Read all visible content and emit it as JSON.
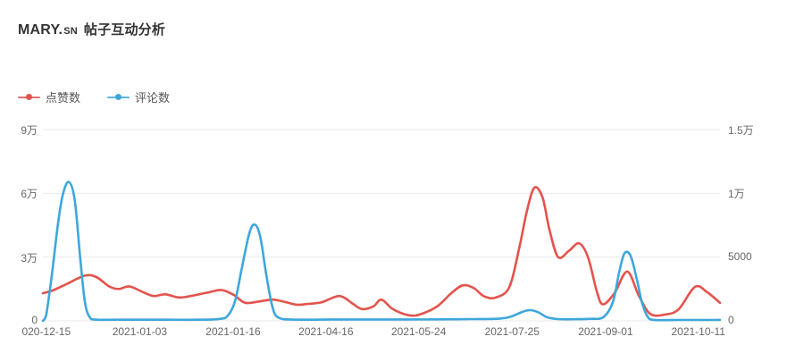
{
  "header": {
    "title_brand": "MARY.",
    "title_brand_suffix": "SN",
    "title_text": "帖子互动分析"
  },
  "legend": {
    "items": [
      {
        "series": "likes",
        "label": "点赞数",
        "color": "#e4534d"
      },
      {
        "series": "comments",
        "label": "评论数",
        "color": "#3da7dc"
      }
    ]
  },
  "colors": {
    "likes_line": "#e4534d",
    "comments_line": "#3da7dc",
    "gridline": "#e9e9e9",
    "axis_text": "#666666",
    "title_text": "#333333"
  },
  "chart_data": {
    "type": "line",
    "title": "MARY.SN 帖子互动分析",
    "smooth": true,
    "grid": true,
    "legend_position": "top-left",
    "x_axis": {
      "labels": [
        "020-12-15",
        "2021-01-03",
        "2021-01-16",
        "2021-04-16",
        "2021-05-24",
        "2021-07-25",
        "2021-09-01",
        "2021-10-11"
      ],
      "label_positions": [
        0.005,
        0.143,
        0.281,
        0.418,
        0.555,
        0.693,
        0.831,
        0.968
      ]
    },
    "y_axis_left": {
      "name": "点赞数",
      "max": 90000,
      "ticks": [
        {
          "label": "0",
          "value": 0
        },
        {
          "label": "3万",
          "value": 30000
        },
        {
          "label": "6万",
          "value": 60000
        },
        {
          "label": "9万",
          "value": 90000
        }
      ]
    },
    "y_axis_right": {
      "name": "评论数",
      "max": 15000,
      "ticks": [
        {
          "label": "0",
          "value": 0
        },
        {
          "label": "5000",
          "value": 5000
        },
        {
          "label": "1万",
          "value": 10000
        },
        {
          "label": "1.5万",
          "value": 15000
        }
      ]
    },
    "series": [
      {
        "name": "点赞数",
        "id": "likes",
        "axis": "left",
        "color": "#e4534d",
        "points": [
          [
            0.0,
            13000
          ],
          [
            0.016,
            14500
          ],
          [
            0.036,
            17500
          ],
          [
            0.062,
            21300
          ],
          [
            0.079,
            20600
          ],
          [
            0.098,
            16200
          ],
          [
            0.112,
            15000
          ],
          [
            0.128,
            16200
          ],
          [
            0.148,
            13500
          ],
          [
            0.164,
            11700
          ],
          [
            0.181,
            12500
          ],
          [
            0.201,
            11000
          ],
          [
            0.22,
            11800
          ],
          [
            0.243,
            13300
          ],
          [
            0.264,
            14500
          ],
          [
            0.282,
            12200
          ],
          [
            0.299,
            8500
          ],
          [
            0.322,
            9300
          ],
          [
            0.34,
            10000
          ],
          [
            0.359,
            8800
          ],
          [
            0.375,
            7600
          ],
          [
            0.392,
            8000
          ],
          [
            0.412,
            8800
          ],
          [
            0.438,
            11700
          ],
          [
            0.458,
            8000
          ],
          [
            0.471,
            5600
          ],
          [
            0.488,
            6800
          ],
          [
            0.5,
            10000
          ],
          [
            0.517,
            5500
          ],
          [
            0.541,
            2600
          ],
          [
            0.559,
            3300
          ],
          [
            0.583,
            7000
          ],
          [
            0.603,
            13000
          ],
          [
            0.62,
            16700
          ],
          [
            0.636,
            15500
          ],
          [
            0.652,
            11500
          ],
          [
            0.669,
            11000
          ],
          [
            0.689,
            16000
          ],
          [
            0.704,
            35000
          ],
          [
            0.715,
            52000
          ],
          [
            0.726,
            62700
          ],
          [
            0.738,
            58000
          ],
          [
            0.748,
            43000
          ],
          [
            0.761,
            30000
          ],
          [
            0.777,
            33000
          ],
          [
            0.792,
            36500
          ],
          [
            0.805,
            30000
          ],
          [
            0.818,
            14000
          ],
          [
            0.827,
            7800
          ],
          [
            0.844,
            13000
          ],
          [
            0.863,
            23200
          ],
          [
            0.88,
            12000
          ],
          [
            0.897,
            3300
          ],
          [
            0.919,
            3000
          ],
          [
            0.939,
            5500
          ],
          [
            0.963,
            16000
          ],
          [
            0.981,
            13500
          ],
          [
            1.0,
            8500
          ]
        ]
      },
      {
        "name": "评论数",
        "id": "comments",
        "axis": "right",
        "color": "#3da7dc",
        "points": [
          [
            0.0,
            0
          ],
          [
            0.005,
            500
          ],
          [
            0.013,
            3500
          ],
          [
            0.022,
            7500
          ],
          [
            0.029,
            9800
          ],
          [
            0.038,
            10900
          ],
          [
            0.047,
            9500
          ],
          [
            0.055,
            5000
          ],
          [
            0.062,
            1500
          ],
          [
            0.069,
            300
          ],
          [
            0.078,
            100
          ],
          [
            0.108,
            90
          ],
          [
            0.148,
            90
          ],
          [
            0.187,
            90
          ],
          [
            0.227,
            90
          ],
          [
            0.26,
            150
          ],
          [
            0.273,
            400
          ],
          [
            0.284,
            1600
          ],
          [
            0.294,
            4200
          ],
          [
            0.305,
            6900
          ],
          [
            0.313,
            7550
          ],
          [
            0.321,
            6600
          ],
          [
            0.33,
            3600
          ],
          [
            0.339,
            1100
          ],
          [
            0.348,
            250
          ],
          [
            0.372,
            100
          ],
          [
            0.425,
            110
          ],
          [
            0.478,
            110
          ],
          [
            0.53,
            110
          ],
          [
            0.583,
            120
          ],
          [
            0.636,
            140
          ],
          [
            0.675,
            180
          ],
          [
            0.691,
            330
          ],
          [
            0.708,
            700
          ],
          [
            0.719,
            840
          ],
          [
            0.731,
            690
          ],
          [
            0.745,
            280
          ],
          [
            0.761,
            140
          ],
          [
            0.788,
            130
          ],
          [
            0.81,
            160
          ],
          [
            0.828,
            300
          ],
          [
            0.842,
            1500
          ],
          [
            0.851,
            3800
          ],
          [
            0.859,
            5300
          ],
          [
            0.868,
            5100
          ],
          [
            0.877,
            3300
          ],
          [
            0.885,
            1400
          ],
          [
            0.893,
            350
          ],
          [
            0.902,
            80
          ],
          [
            0.939,
            70
          ],
          [
            0.979,
            70
          ],
          [
            1.0,
            80
          ]
        ]
      }
    ]
  }
}
